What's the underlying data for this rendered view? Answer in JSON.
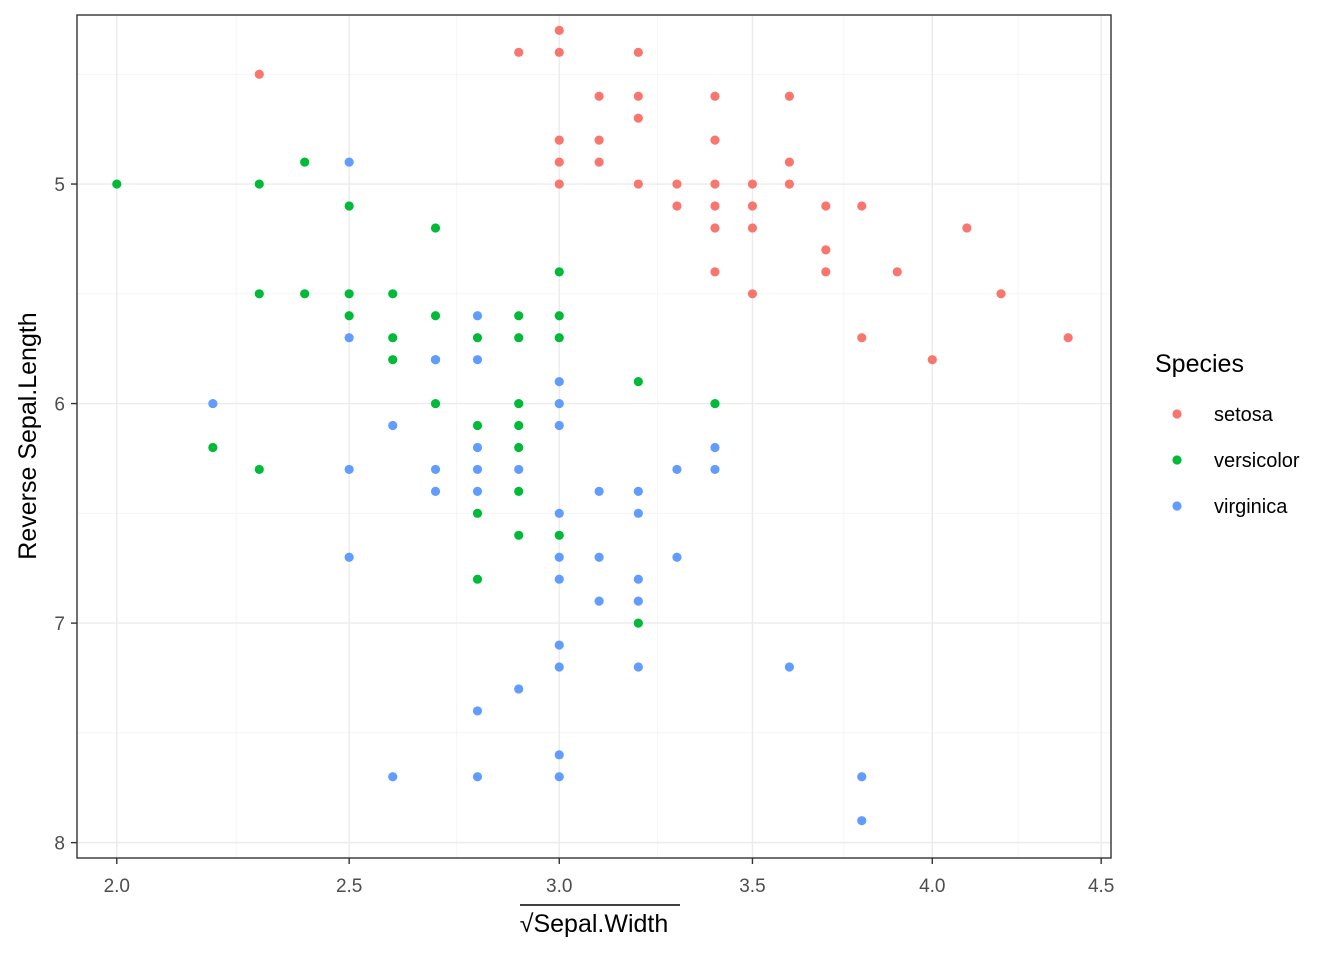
{
  "chart_data": {
    "type": "scatter",
    "title": "",
    "xlabel": "Sepal.Width",
    "xlabel_prefix": "√",
    "ylabel": "Reverse Sepal.Length",
    "x_scale": "sqrt",
    "y_scale": "reverse",
    "xlim": [
      1.92,
      4.53
    ],
    "ylim": [
      4.23,
      8.07
    ],
    "x_ticks": [
      2.0,
      2.5,
      3.0,
      3.5,
      4.0,
      4.5
    ],
    "x_tick_labels": [
      "2.0",
      "2.5",
      "3.0",
      "3.5",
      "4.0",
      "4.5"
    ],
    "y_ticks": [
      5,
      6,
      7,
      8
    ],
    "y_tick_labels": [
      "5",
      "6",
      "7",
      "8"
    ],
    "grid": true,
    "legend": {
      "title": "Species",
      "position": "right"
    },
    "series": [
      {
        "name": "setosa",
        "color": "#F8766D",
        "points": [
          [
            3.0,
            4.3
          ],
          [
            2.9,
            4.4
          ],
          [
            3.0,
            4.4
          ],
          [
            3.2,
            4.4
          ],
          [
            2.3,
            4.5
          ],
          [
            3.1,
            4.6
          ],
          [
            3.2,
            4.6
          ],
          [
            3.4,
            4.6
          ],
          [
            3.6,
            4.6
          ],
          [
            3.2,
            4.7
          ],
          [
            3.0,
            4.8
          ],
          [
            3.1,
            4.8
          ],
          [
            3.4,
            4.8
          ],
          [
            3.0,
            4.9
          ],
          [
            3.1,
            4.9
          ],
          [
            3.6,
            4.9
          ],
          [
            3.0,
            5.0
          ],
          [
            3.2,
            5.0
          ],
          [
            3.3,
            5.0
          ],
          [
            3.4,
            5.0
          ],
          [
            3.5,
            5.0
          ],
          [
            3.6,
            5.0
          ],
          [
            3.3,
            5.1
          ],
          [
            3.4,
            5.1
          ],
          [
            3.5,
            5.1
          ],
          [
            3.7,
            5.1
          ],
          [
            3.8,
            5.1
          ],
          [
            3.4,
            5.2
          ],
          [
            3.5,
            5.2
          ],
          [
            4.1,
            5.2
          ],
          [
            3.7,
            5.3
          ],
          [
            3.4,
            5.4
          ],
          [
            3.7,
            5.4
          ],
          [
            3.9,
            5.4
          ],
          [
            3.5,
            5.5
          ],
          [
            4.2,
            5.5
          ],
          [
            3.8,
            5.7
          ],
          [
            4.4,
            5.7
          ],
          [
            4.0,
            5.8
          ]
        ]
      },
      {
        "name": "versicolor",
        "color": "#00BA38",
        "points": [
          [
            2.4,
            4.9
          ],
          [
            2.0,
            5.0
          ],
          [
            2.3,
            5.0
          ],
          [
            2.5,
            5.1
          ],
          [
            2.7,
            5.2
          ],
          [
            3.0,
            5.4
          ],
          [
            2.3,
            5.5
          ],
          [
            2.4,
            5.5
          ],
          [
            2.5,
            5.5
          ],
          [
            2.6,
            5.5
          ],
          [
            2.5,
            5.6
          ],
          [
            2.7,
            5.6
          ],
          [
            2.9,
            5.6
          ],
          [
            3.0,
            5.6
          ],
          [
            2.6,
            5.7
          ],
          [
            2.8,
            5.7
          ],
          [
            2.9,
            5.7
          ],
          [
            3.0,
            5.7
          ],
          [
            2.6,
            5.8
          ],
          [
            2.7,
            5.8
          ],
          [
            3.2,
            5.9
          ],
          [
            2.7,
            6.0
          ],
          [
            2.9,
            6.0
          ],
          [
            3.4,
            6.0
          ],
          [
            2.8,
            6.1
          ],
          [
            2.9,
            6.1
          ],
          [
            2.2,
            6.2
          ],
          [
            2.9,
            6.2
          ],
          [
            2.3,
            6.3
          ],
          [
            2.9,
            6.4
          ],
          [
            2.8,
            6.5
          ],
          [
            2.9,
            6.6
          ],
          [
            3.0,
            6.6
          ],
          [
            2.8,
            6.8
          ],
          [
            3.2,
            7.0
          ]
        ]
      },
      {
        "name": "virginica",
        "color": "#619CFF",
        "points": [
          [
            2.5,
            4.9
          ],
          [
            2.8,
            5.6
          ],
          [
            2.5,
            5.7
          ],
          [
            2.7,
            5.8
          ],
          [
            2.8,
            5.8
          ],
          [
            3.0,
            5.9
          ],
          [
            2.2,
            6.0
          ],
          [
            3.0,
            6.0
          ],
          [
            2.6,
            6.1
          ],
          [
            3.0,
            6.1
          ],
          [
            2.8,
            6.2
          ],
          [
            3.4,
            6.2
          ],
          [
            2.5,
            6.3
          ],
          [
            2.7,
            6.3
          ],
          [
            2.8,
            6.3
          ],
          [
            2.9,
            6.3
          ],
          [
            3.3,
            6.3
          ],
          [
            3.4,
            6.3
          ],
          [
            2.7,
            6.4
          ],
          [
            2.8,
            6.4
          ],
          [
            3.1,
            6.4
          ],
          [
            3.2,
            6.4
          ],
          [
            3.0,
            6.5
          ],
          [
            3.2,
            6.5
          ],
          [
            2.5,
            6.7
          ],
          [
            3.0,
            6.7
          ],
          [
            3.1,
            6.7
          ],
          [
            3.3,
            6.7
          ],
          [
            3.0,
            6.8
          ],
          [
            3.2,
            6.8
          ],
          [
            3.1,
            6.9
          ],
          [
            3.2,
            6.9
          ],
          [
            3.0,
            7.1
          ],
          [
            3.0,
            7.2
          ],
          [
            3.2,
            7.2
          ],
          [
            3.6,
            7.2
          ],
          [
            2.9,
            7.3
          ],
          [
            2.8,
            7.4
          ],
          [
            3.0,
            7.6
          ],
          [
            2.6,
            7.7
          ],
          [
            2.8,
            7.7
          ],
          [
            3.0,
            7.7
          ],
          [
            3.8,
            7.7
          ],
          [
            3.8,
            7.9
          ]
        ]
      }
    ]
  }
}
